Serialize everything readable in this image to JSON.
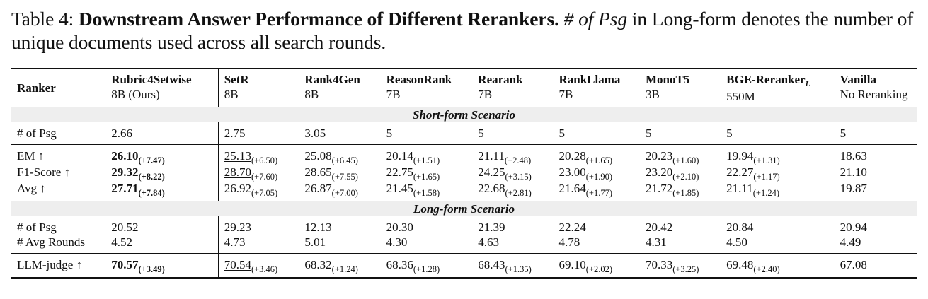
{
  "caption": {
    "label": "Table 4: ",
    "bold": "Downstream Answer Performance of Different Rerankers.",
    "italic": "# of Psg",
    "rest": " in Long-form denotes the number of unique documents used across all search rounds."
  },
  "table": {
    "ranker_header": "Ranker",
    "models": [
      {
        "name": "Rubric4Setwise",
        "size": "8B (Ours)"
      },
      {
        "name": "SetR",
        "size": "8B"
      },
      {
        "name": "Rank4Gen",
        "size": "8B"
      },
      {
        "name": "ReasonRank",
        "size": "7B"
      },
      {
        "name": "Rearank",
        "size": "7B"
      },
      {
        "name": "RankLlama",
        "size": "7B"
      },
      {
        "name": "MonoT5",
        "size": "3B"
      },
      {
        "name": "BGE-Reranker",
        "sub": "L",
        "size": "550M"
      },
      {
        "name": "Vanilla",
        "size": "No Reranking"
      }
    ],
    "short_title": "Short-form Scenario",
    "long_title": "Long-form Scenario",
    "rows": {
      "s_psg": {
        "label": "# of Psg",
        "vals": [
          [
            "2.66",
            ""
          ],
          [
            "2.75",
            ""
          ],
          [
            "3.05",
            ""
          ],
          [
            "5",
            ""
          ],
          [
            "5",
            ""
          ],
          [
            "5",
            ""
          ],
          [
            "5",
            ""
          ],
          [
            "5",
            ""
          ],
          [
            "5",
            ""
          ]
        ]
      },
      "em": {
        "label": "EM ↑",
        "vals": [
          [
            "26.10",
            "(+7.47)"
          ],
          [
            "25.13",
            "(+6.50)"
          ],
          [
            "25.08",
            "(+6.45)"
          ],
          [
            "20.14",
            "(+1.51)"
          ],
          [
            "21.11",
            "(+2.48)"
          ],
          [
            "20.28",
            "(+1.65)"
          ],
          [
            "20.23",
            "(+1.60)"
          ],
          [
            "19.94",
            "(+1.31)"
          ],
          [
            "18.63",
            ""
          ]
        ]
      },
      "f1": {
        "label": "F1-Score ↑",
        "vals": [
          [
            "29.32",
            "(+8.22)"
          ],
          [
            "28.70",
            "(+7.60)"
          ],
          [
            "28.65",
            "(+7.55)"
          ],
          [
            "22.75",
            "(+1.65)"
          ],
          [
            "24.25",
            "(+3.15)"
          ],
          [
            "23.00",
            "(+1.90)"
          ],
          [
            "23.20",
            "(+2.10)"
          ],
          [
            "22.27",
            "(+1.17)"
          ],
          [
            "21.10",
            ""
          ]
        ]
      },
      "avg": {
        "label": "Avg ↑",
        "vals": [
          [
            "27.71",
            "(+7.84)"
          ],
          [
            "26.92",
            "(+7.05)"
          ],
          [
            "26.87",
            "(+7.00)"
          ],
          [
            "21.45",
            "(+1.58)"
          ],
          [
            "22.68",
            "(+2.81)"
          ],
          [
            "21.64",
            "(+1.77)"
          ],
          [
            "21.72",
            "(+1.85)"
          ],
          [
            "21.11",
            "(+1.24)"
          ],
          [
            "19.87",
            ""
          ]
        ]
      },
      "l_psg": {
        "label": "# of Psg",
        "vals": [
          [
            "20.52",
            ""
          ],
          [
            "29.23",
            ""
          ],
          [
            "12.13",
            ""
          ],
          [
            "20.30",
            ""
          ],
          [
            "21.39",
            ""
          ],
          [
            "22.24",
            ""
          ],
          [
            "20.42",
            ""
          ],
          [
            "20.84",
            ""
          ],
          [
            "20.94",
            ""
          ]
        ]
      },
      "rounds": {
        "label": "# Avg Rounds",
        "vals": [
          [
            "4.52",
            ""
          ],
          [
            "4.73",
            ""
          ],
          [
            "5.01",
            ""
          ],
          [
            "4.30",
            ""
          ],
          [
            "4.63",
            ""
          ],
          [
            "4.78",
            ""
          ],
          [
            "4.31",
            ""
          ],
          [
            "4.50",
            ""
          ],
          [
            "4.49",
            ""
          ]
        ]
      },
      "judge": {
        "label": "LLM-judge ↑",
        "vals": [
          [
            "70.57",
            "(+3.49)"
          ],
          [
            "70.54",
            "(+3.46)"
          ],
          [
            "68.32",
            "(+1.24)"
          ],
          [
            "68.36",
            "(+1.28)"
          ],
          [
            "68.43",
            "(+1.35)"
          ],
          [
            "69.10",
            "(+2.02)"
          ],
          [
            "70.33",
            "(+3.25)"
          ],
          [
            "69.48",
            "(+2.40)"
          ],
          [
            "67.08",
            ""
          ]
        ]
      }
    }
  }
}
